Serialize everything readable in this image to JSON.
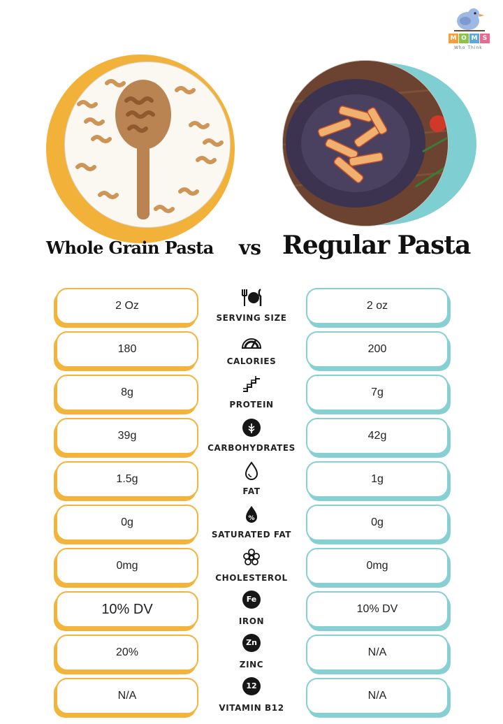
{
  "logo": {
    "blocks": [
      "M",
      "O",
      "M",
      "S"
    ],
    "tagline": "Who Think"
  },
  "title": {
    "left": "Whole Grain Pasta",
    "vs": "vs",
    "right": "Regular Pasta"
  },
  "colors": {
    "left_accent": "#f3b43c",
    "right_accent": "#86d0d4"
  },
  "rows": [
    {
      "label": "SERVING SIZE",
      "icon": "utensils-plate-icon",
      "left": "2 Oz",
      "right": "2 oz"
    },
    {
      "label": "CALORIES",
      "icon": "gauge-icon",
      "left": "180",
      "right": "200"
    },
    {
      "label": "PROTEIN",
      "icon": "protein-strand-icon",
      "left": "8g",
      "right": "7g"
    },
    {
      "label": "CARBOHYDRATES",
      "icon": "grain-icon",
      "left": "39g",
      "right": "42g"
    },
    {
      "label": "FAT",
      "icon": "drop-icon",
      "left": "1.5g",
      "right": "1g"
    },
    {
      "label": "SATURATED FAT",
      "icon": "percent-drop-icon",
      "left": "0g",
      "right": "0g"
    },
    {
      "label": "CHOLESTEROL",
      "icon": "molecule-icon",
      "left": "0mg",
      "right": "0mg"
    },
    {
      "label": "IRON",
      "icon": "fe-badge-icon",
      "badge": "Fe",
      "left": "10% DV",
      "right": "10% DV"
    },
    {
      "label": "ZINC",
      "icon": "zn-badge-icon",
      "badge": "Zn",
      "left": "20%",
      "right": "N/A"
    },
    {
      "label": "VITAMIN B12",
      "icon": "b12-badge-icon",
      "badge": "12",
      "left": "N/A",
      "right": "N/A"
    }
  ]
}
